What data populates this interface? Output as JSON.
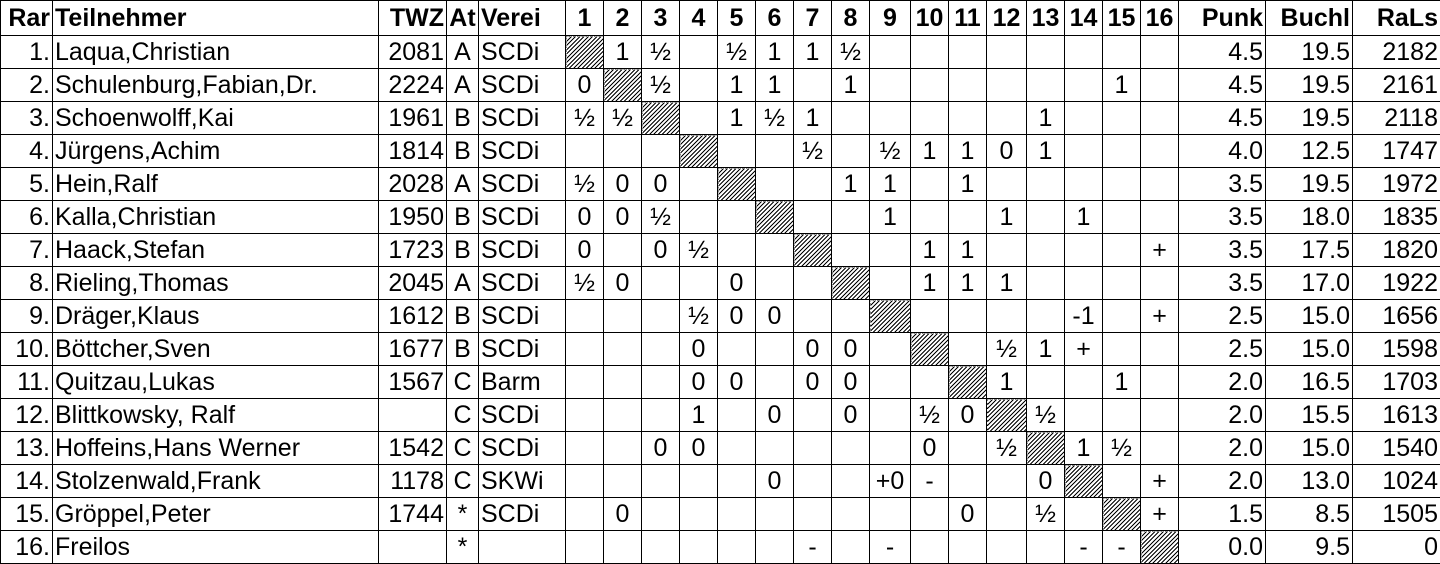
{
  "table": {
    "header": [
      "Rar",
      "Teilnehmer",
      "TWZ",
      "At",
      "Verei",
      "1",
      "2",
      "3",
      "4",
      "5",
      "6",
      "7",
      "8",
      "9",
      "10",
      "11",
      "12",
      "13",
      "14",
      "15",
      "16",
      "Punk",
      "Buchl",
      "RaLs"
    ],
    "rows": [
      [
        "1.",
        "Laqua,Christian",
        "2081",
        "A",
        "SCDi",
        null,
        "1",
        "½",
        null,
        "½",
        "1",
        "1",
        "½",
        null,
        null,
        null,
        null,
        null,
        null,
        null,
        null,
        "4.5",
        "19.5",
        "2182"
      ],
      [
        "2.",
        "Schulenburg,Fabian,Dr.",
        "2224",
        "A",
        "SCDi",
        "0",
        null,
        "½",
        null,
        "1",
        "1",
        null,
        "1",
        null,
        null,
        null,
        null,
        null,
        null,
        "1",
        null,
        "4.5",
        "19.5",
        "2161"
      ],
      [
        "3.",
        "Schoenwolff,Kai",
        "1961",
        "B",
        "SCDi",
        "½",
        "½",
        null,
        null,
        "1",
        "½",
        "1",
        null,
        null,
        null,
        null,
        null,
        "1",
        null,
        null,
        null,
        "4.5",
        "19.5",
        "2118"
      ],
      [
        "4.",
        "Jürgens,Achim",
        "1814",
        "B",
        "SCDi",
        null,
        null,
        null,
        null,
        null,
        null,
        "½",
        null,
        "½",
        "1",
        "1",
        "0",
        "1",
        null,
        null,
        null,
        "4.0",
        "12.5",
        "1747"
      ],
      [
        "5.",
        "Hein,Ralf",
        "2028",
        "A",
        "SCDi",
        "½",
        "0",
        "0",
        null,
        null,
        null,
        null,
        "1",
        "1",
        null,
        "1",
        null,
        null,
        null,
        null,
        null,
        "3.5",
        "19.5",
        "1972"
      ],
      [
        "6.",
        "Kalla,Christian",
        "1950",
        "B",
        "SCDi",
        "0",
        "0",
        "½",
        null,
        null,
        null,
        null,
        null,
        "1",
        null,
        null,
        "1",
        null,
        "1",
        null,
        null,
        "3.5",
        "18.0",
        "1835"
      ],
      [
        "7.",
        "Haack,Stefan",
        "1723",
        "B",
        "SCDi",
        "0",
        null,
        "0",
        "½",
        null,
        null,
        null,
        null,
        null,
        "1",
        "1",
        null,
        null,
        null,
        null,
        "+",
        "3.5",
        "17.5",
        "1820"
      ],
      [
        "8.",
        "Rieling,Thomas",
        "2045",
        "A",
        "SCDi",
        "½",
        "0",
        null,
        null,
        "0",
        null,
        null,
        null,
        null,
        "1",
        "1",
        "1",
        null,
        null,
        null,
        null,
        "3.5",
        "17.0",
        "1922"
      ],
      [
        "9.",
        "Dräger,Klaus",
        "1612",
        "B",
        "SCDi",
        null,
        null,
        null,
        "½",
        "0",
        "0",
        null,
        null,
        null,
        null,
        null,
        null,
        null,
        "-1",
        null,
        "+",
        "2.5",
        "15.0",
        "1656"
      ],
      [
        "10.",
        "Böttcher,Sven",
        "1677",
        "B",
        "SCDi",
        null,
        null,
        null,
        "0",
        null,
        null,
        "0",
        "0",
        null,
        null,
        null,
        "½",
        "1",
        "+",
        null,
        null,
        "2.5",
        "15.0",
        "1598"
      ],
      [
        "11.",
        "Quitzau,Lukas",
        "1567",
        "C",
        "Barm",
        null,
        null,
        null,
        "0",
        "0",
        null,
        "0",
        "0",
        null,
        null,
        null,
        "1",
        null,
        null,
        "1",
        null,
        "2.0",
        "16.5",
        "1703"
      ],
      [
        "12.",
        "Blittkowsky, Ralf",
        null,
        "C",
        "SCDi",
        null,
        null,
        null,
        "1",
        null,
        "0",
        null,
        "0",
        null,
        "½",
        "0",
        null,
        "½",
        null,
        null,
        null,
        "2.0",
        "15.5",
        "1613"
      ],
      [
        "13.",
        "Hoffeins,Hans Werner",
        "1542",
        "C",
        "SCDi",
        null,
        null,
        "0",
        "0",
        null,
        null,
        null,
        null,
        null,
        "0",
        null,
        "½",
        null,
        "1",
        "½",
        null,
        "2.0",
        "15.0",
        "1540"
      ],
      [
        "14.",
        "Stolzenwald,Frank",
        "1178",
        "C",
        "SKWi",
        null,
        null,
        null,
        null,
        null,
        "0",
        null,
        null,
        "+0",
        "-",
        null,
        null,
        "0",
        null,
        null,
        "+",
        "2.0",
        "13.0",
        "1024"
      ],
      [
        "15.",
        "Gröppel,Peter",
        "1744",
        "*",
        "SCDi",
        null,
        "0",
        null,
        null,
        null,
        null,
        null,
        null,
        null,
        null,
        "0",
        null,
        "½",
        null,
        null,
        "+",
        "1.5",
        "8.5",
        "1505"
      ],
      [
        "16.",
        "Freilos",
        null,
        "*",
        null,
        null,
        null,
        null,
        null,
        null,
        null,
        "-",
        null,
        "-",
        null,
        null,
        null,
        null,
        "-",
        "-",
        null,
        "0.0",
        "9.5",
        "0"
      ]
    ]
  }
}
